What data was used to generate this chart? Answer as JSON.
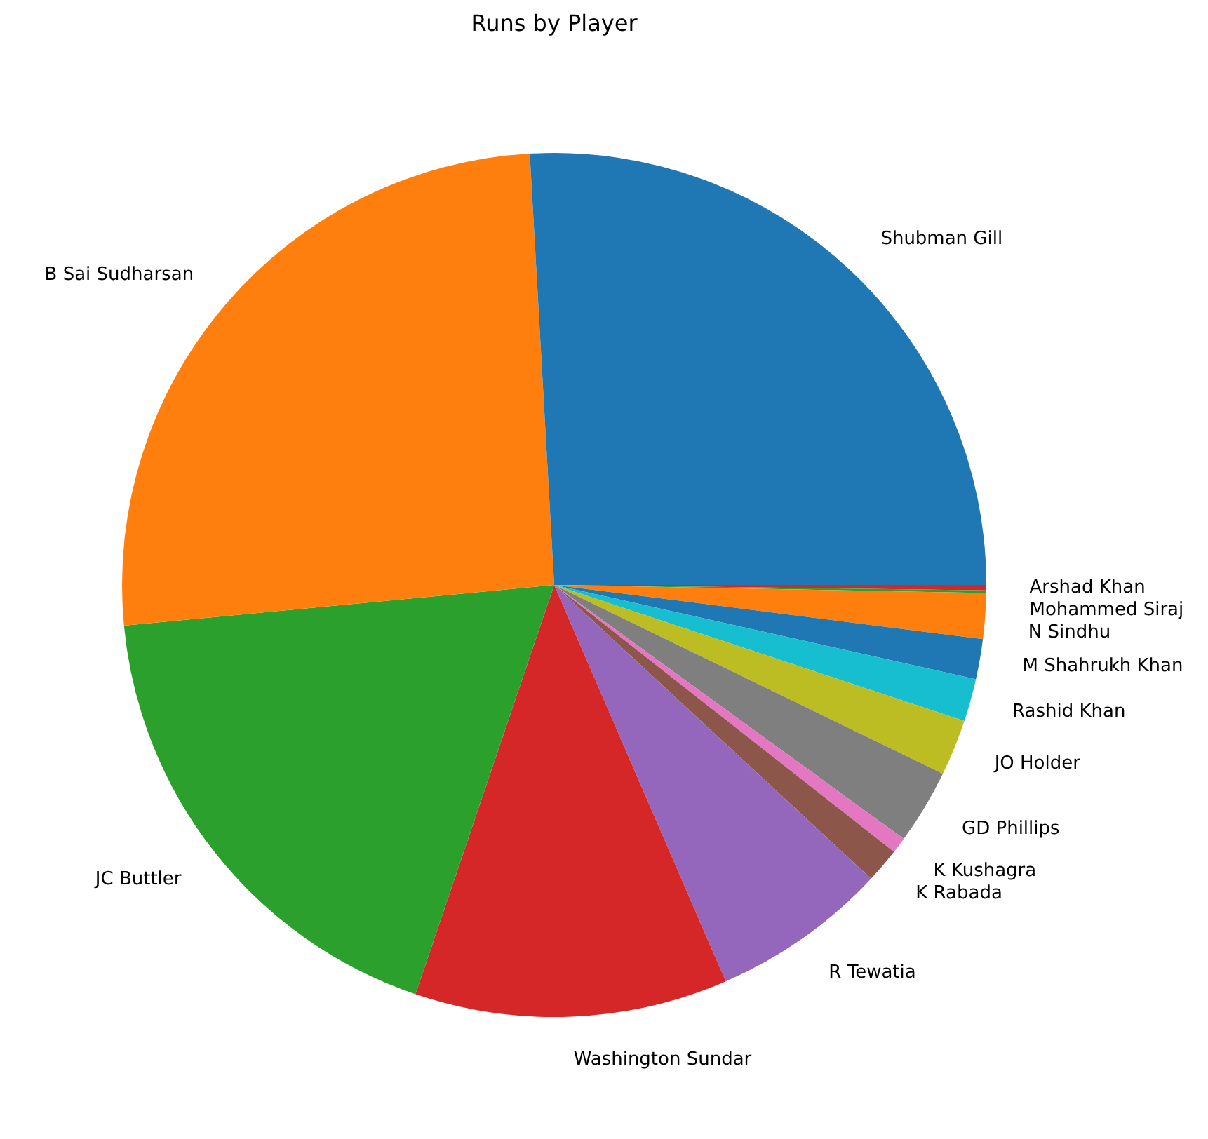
{
  "chart_data": {
    "type": "pie",
    "title": "Runs by Player",
    "categories": [
      "Shubman Gill",
      "B Sai Sudharsan",
      "JC Buttler",
      "Washington Sundar",
      "R Tewatia",
      "K Rabada",
      "K Kushagra",
      "GD Phillips",
      "JO Holder",
      "Rashid Khan",
      "M Shahrukh Khan",
      "N Sindhu",
      "Mohammed Siraj",
      "Arshad Khan"
    ],
    "values": [
      25.9,
      25.6,
      18.3,
      11.7,
      6.6,
      1.3,
      0.6,
      2.8,
      2.1,
      1.6,
      1.5,
      1.7,
      0.1,
      0.2
    ],
    "colors": [
      "#1f77b4",
      "#ff7f0e",
      "#2ca02c",
      "#d62728",
      "#9467bd",
      "#8c564b",
      "#e377c2",
      "#7f7f7f",
      "#bcbd22",
      "#17becf",
      "#1f77b4",
      "#ff7f0e",
      "#2ca02c",
      "#d62728"
    ],
    "legend": false
  }
}
